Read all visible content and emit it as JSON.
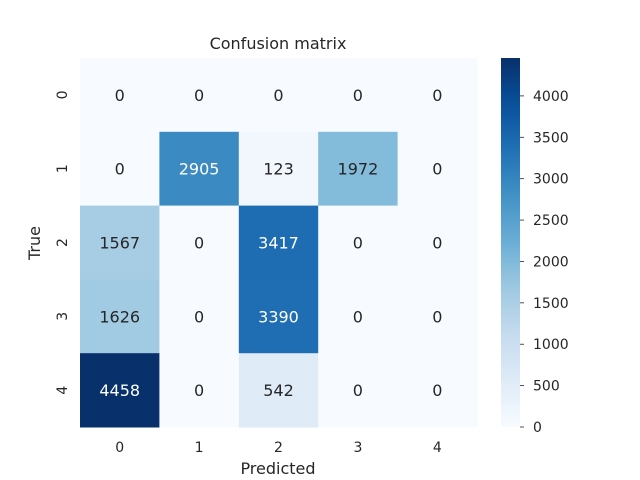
{
  "chart_data": {
    "type": "heatmap",
    "title": "Confusion matrix",
    "xlabel": "Predicted",
    "ylabel": "True",
    "x_categories": [
      "0",
      "1",
      "2",
      "3",
      "4"
    ],
    "y_categories": [
      "0",
      "1",
      "2",
      "3",
      "4"
    ],
    "values": [
      [
        0,
        0,
        0,
        0,
        0
      ],
      [
        0,
        2905,
        123,
        1972,
        0
      ],
      [
        1567,
        0,
        3417,
        0,
        0
      ],
      [
        1626,
        0,
        3390,
        0,
        0
      ],
      [
        4458,
        0,
        542,
        0,
        0
      ]
    ],
    "colormap": "Blues",
    "vmin": 0,
    "vmax": 4458,
    "colorbar_ticks": [
      0,
      500,
      1000,
      1500,
      2000,
      2500,
      3000,
      3500,
      4000
    ],
    "annotations": true,
    "colorbar": true,
    "grid": false
  },
  "colors": {
    "text_dark": "#262626",
    "text_light": "#ffffff",
    "background": "#ffffff"
  }
}
